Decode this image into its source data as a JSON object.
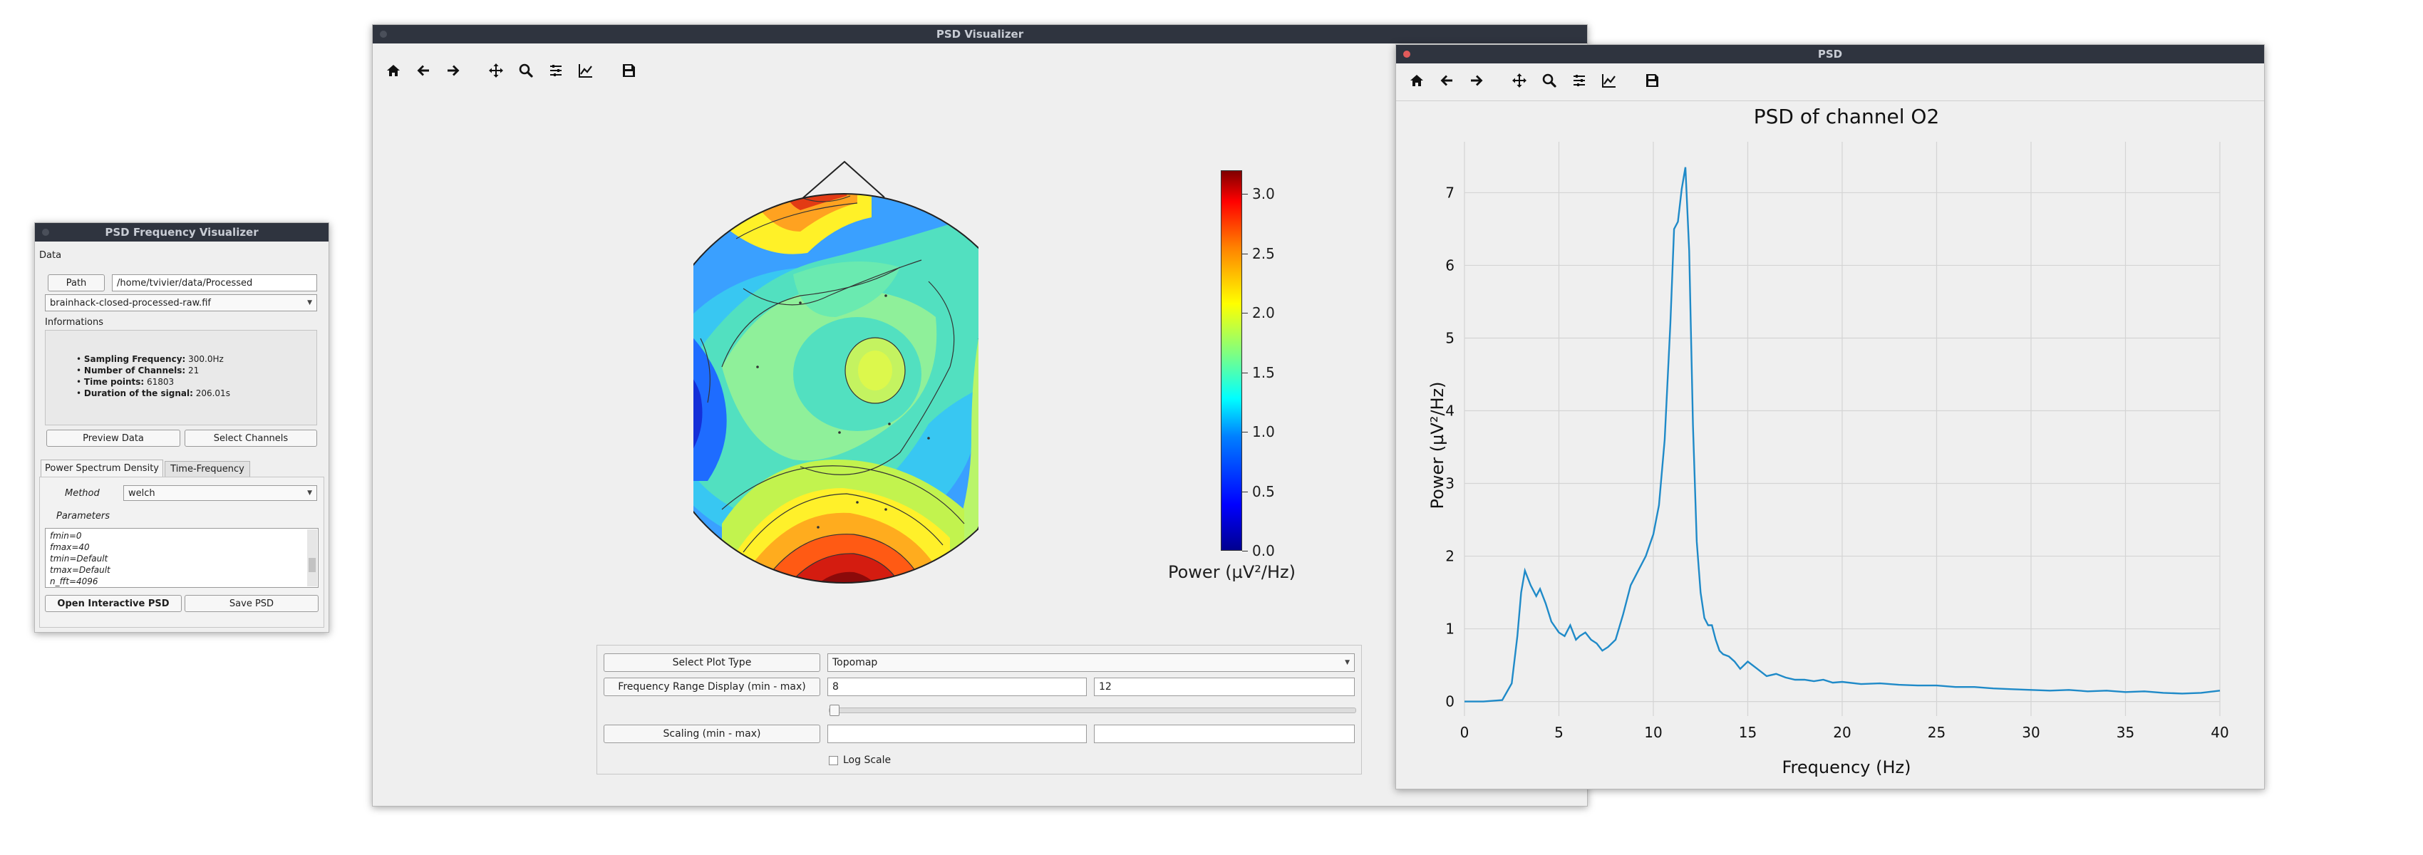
{
  "small_window": {
    "title": "PSD Frequency Visualizer",
    "data_section": "Data",
    "path_button": "Path",
    "path_value": "/home/tvivier/data/Processed",
    "file_select": "brainhack-closed-processed-raw.fif",
    "info_section": "Informations",
    "info": [
      {
        "label": "Sampling Frequency:",
        "value": " 300.0Hz"
      },
      {
        "label": "Number of Channels:",
        "value": " 21"
      },
      {
        "label": "Time points:",
        "value": " 61803"
      },
      {
        "label": "Duration of the signal:",
        "value": " 206.01s"
      }
    ],
    "preview_button": "Preview Data",
    "select_channels_button": "Select Channels",
    "tabs": [
      "Power Spectrum Density",
      "Time-Frequency"
    ],
    "method_label": "Method",
    "method_value": "welch",
    "parameters_label": "Parameters",
    "parameters": [
      "fmin=0",
      "fmax=40",
      "tmin=Default",
      "tmax=Default",
      "n_fft=4096"
    ],
    "open_button": "Open Interactive PSD",
    "save_button": "Save PSD"
  },
  "main_window": {
    "title": "PSD Visualizer",
    "colorbar": {
      "label": "Power (µV²/Hz)",
      "ticks": [
        "0.0",
        "0.5",
        "1.0",
        "1.5",
        "2.0",
        "2.5",
        "3.0"
      ],
      "min": 0,
      "max": 3.2
    },
    "controls": {
      "plot_type_label": "Select Plot Type",
      "plot_type_value": "Topomap",
      "freq_range_label": "Frequency Range Display (min - max)",
      "freq_min": "8",
      "freq_max": "12",
      "slider_value": 0,
      "scaling_label": "Scaling (min - max)",
      "scaling_min": "",
      "scaling_max": "",
      "log_scale_label": "Log Scale",
      "log_scale_checked": false
    }
  },
  "psd_window": {
    "title": "PSD"
  },
  "toolbar_icons": [
    "home-icon",
    "back-icon",
    "forward-icon",
    "pan-icon",
    "zoom-icon",
    "configure-icon",
    "edit-curve-icon",
    "save-icon"
  ],
  "chart_data": {
    "type": "line",
    "title": "PSD of channel O2",
    "xlabel": "Frequency (Hz)",
    "ylabel": "Power (µV²/Hz)",
    "xlim": [
      0,
      40
    ],
    "ylim": [
      -0.2,
      7.7
    ],
    "xticks": [
      0,
      5,
      10,
      15,
      20,
      25,
      30,
      35,
      40
    ],
    "yticks": [
      0,
      1,
      2,
      3,
      4,
      5,
      6,
      7
    ],
    "grid": true,
    "color": "#1f8ac8",
    "series": [
      {
        "x": [
          0,
          1,
          2,
          2.5,
          2.8,
          3.0,
          3.2,
          3.5,
          3.8,
          4.0,
          4.3,
          4.6,
          5.0,
          5.3,
          5.6,
          5.9,
          6.1,
          6.4,
          6.7,
          7.0,
          7.3,
          7.6,
          8.0,
          8.4,
          8.8,
          9.2,
          9.6,
          10.0,
          10.3,
          10.6,
          10.9,
          11.1,
          11.3,
          11.5,
          11.7,
          11.9,
          12.1,
          12.3,
          12.5,
          12.7,
          12.9,
          13.1,
          13.3,
          13.5,
          13.7,
          14.0,
          14.3,
          14.6,
          15.0,
          15.5,
          16.0,
          16.5,
          17.0,
          17.5,
          18.0,
          18.5,
          19.0,
          19.5,
          20.0,
          21.0,
          22.0,
          23.0,
          24.0,
          25.0,
          26.0,
          27.0,
          28.0,
          29.0,
          30.0,
          31.0,
          32.0,
          33.0,
          34.0,
          35.0,
          36.0,
          37.0,
          38.0,
          39.0,
          40.0
        ],
        "y": [
          0,
          0,
          0.02,
          0.25,
          0.9,
          1.5,
          1.8,
          1.6,
          1.45,
          1.55,
          1.35,
          1.1,
          0.95,
          0.9,
          1.05,
          0.85,
          0.9,
          0.95,
          0.85,
          0.8,
          0.7,
          0.75,
          0.85,
          1.2,
          1.6,
          1.8,
          2.0,
          2.3,
          2.7,
          3.6,
          5.2,
          6.5,
          6.6,
          7.05,
          7.35,
          6.2,
          3.8,
          2.2,
          1.5,
          1.15,
          1.05,
          1.05,
          0.85,
          0.7,
          0.65,
          0.62,
          0.55,
          0.45,
          0.55,
          0.45,
          0.35,
          0.38,
          0.33,
          0.3,
          0.3,
          0.28,
          0.3,
          0.26,
          0.27,
          0.24,
          0.25,
          0.23,
          0.22,
          0.22,
          0.2,
          0.2,
          0.18,
          0.17,
          0.16,
          0.15,
          0.16,
          0.14,
          0.15,
          0.13,
          0.14,
          0.12,
          0.11,
          0.12,
          0.15
        ]
      }
    ]
  }
}
